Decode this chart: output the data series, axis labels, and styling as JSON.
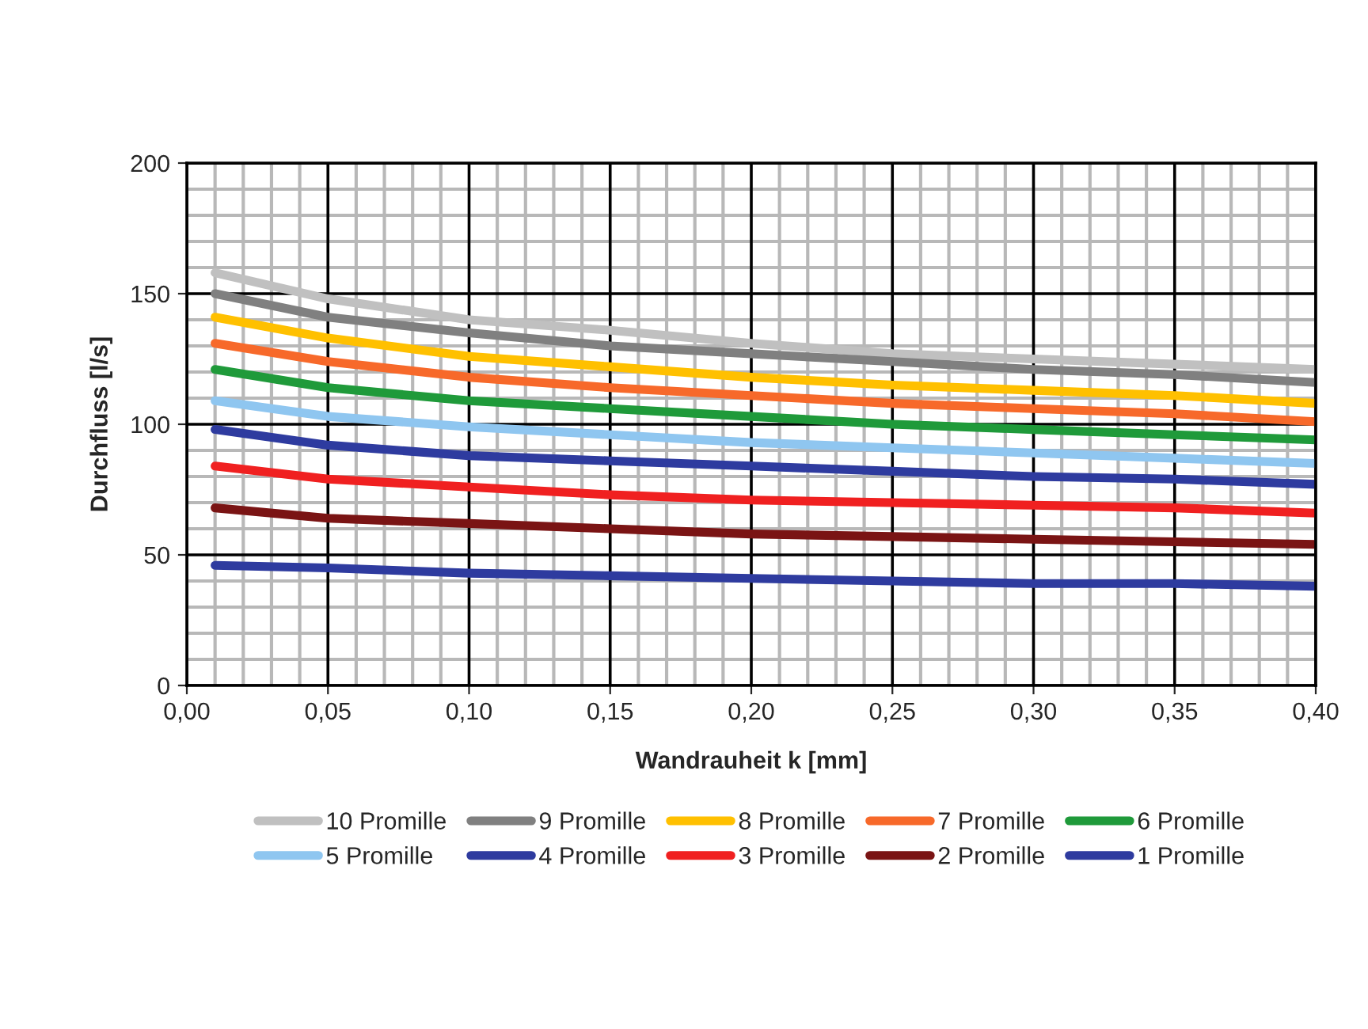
{
  "chart_data": {
    "type": "line",
    "xlabel": "Wandrauheit k [mm]",
    "ylabel": "Durchfluss [l/s]",
    "x": [
      0.01,
      0.05,
      0.1,
      0.15,
      0.2,
      0.25,
      0.3,
      0.35,
      0.4
    ],
    "xlim": [
      0,
      0.4
    ],
    "xticks": [
      {
        "value": 0,
        "label": "0,00"
      },
      {
        "value": 0.05,
        "label": "0,05"
      },
      {
        "value": 0.1,
        "label": "0,10"
      },
      {
        "value": 0.15,
        "label": "0,15"
      },
      {
        "value": 0.2,
        "label": "0,20"
      },
      {
        "value": 0.25,
        "label": "0,25"
      },
      {
        "value": 0.3,
        "label": "0,30"
      },
      {
        "value": 0.35,
        "label": "0,35"
      },
      {
        "value": 0.4,
        "label": "0,40"
      }
    ],
    "ylim": [
      0,
      200
    ],
    "yticks": [
      0,
      50,
      100,
      150,
      200
    ],
    "grid": true,
    "legend": "bottom",
    "marker": "none",
    "line_style": "solid",
    "series": [
      {
        "name": "10 Promille",
        "color": "#c0c0c0",
        "values": [
          158,
          148,
          140,
          136,
          131,
          127,
          125,
          123,
          121
        ]
      },
      {
        "name": "9 Promille",
        "color": "#808080",
        "values": [
          150,
          141,
          135,
          130,
          127,
          124,
          121,
          119,
          116
        ]
      },
      {
        "name": "8 Promille",
        "color": "#ffc000",
        "values": [
          141,
          133,
          126,
          122,
          118,
          115,
          113,
          111,
          108
        ]
      },
      {
        "name": "7 Promille",
        "color": "#f7692a",
        "values": [
          131,
          124,
          118,
          114,
          111,
          108,
          106,
          104,
          101
        ]
      },
      {
        "name": "6 Promille",
        "color": "#1f9a3a",
        "values": [
          121,
          114,
          109,
          106,
          103,
          100,
          98,
          96,
          94
        ]
      },
      {
        "name": "5 Promille",
        "color": "#8fc6f0",
        "values": [
          109,
          103,
          99,
          96,
          93,
          91,
          89,
          87,
          85
        ]
      },
      {
        "name": "4 Promille",
        "color": "#2e3b9f",
        "values": [
          98,
          92,
          88,
          86,
          84,
          82,
          80,
          79,
          77
        ]
      },
      {
        "name": "3 Promille",
        "color": "#f02020",
        "values": [
          84,
          79,
          76,
          73,
          71,
          70,
          69,
          68,
          66
        ]
      },
      {
        "name": "2 Promille",
        "color": "#7a1414",
        "values": [
          68,
          64,
          62,
          60,
          58,
          57,
          56,
          55,
          54
        ]
      },
      {
        "name": "1 Promille",
        "color": "#2e3b9f",
        "values": [
          46,
          45,
          43,
          42,
          41,
          40,
          39,
          39,
          38
        ]
      }
    ]
  }
}
